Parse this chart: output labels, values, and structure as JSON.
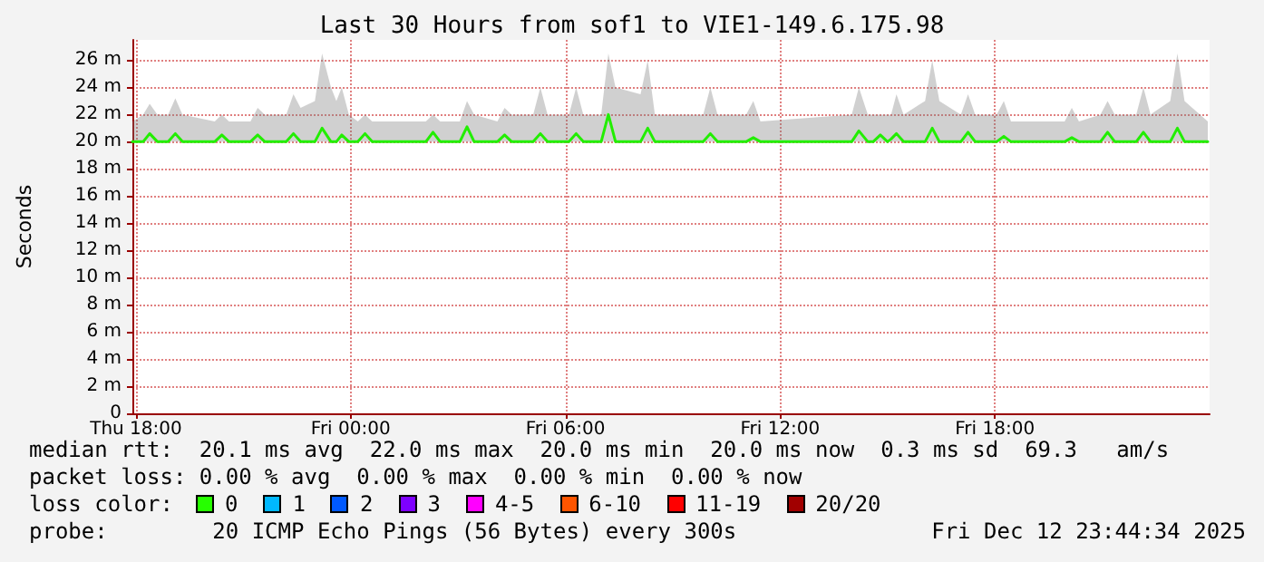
{
  "chart_data": {
    "type": "line",
    "title": "Last 30 Hours from sof1 to VIE1-149.6.175.98",
    "ylabel": "Seconds",
    "xlim": [
      "2025-12-11T17:54",
      "2025-12-13T00:00"
    ],
    "xticks": [
      {
        "value": "2025-12-11T18:00",
        "label": "Thu 18:00"
      },
      {
        "value": "2025-12-12T00:00",
        "label": "Fri 00:00"
      },
      {
        "value": "2025-12-12T06:00",
        "label": "Fri 06:00"
      },
      {
        "value": "2025-12-12T12:00",
        "label": "Fri 12:00"
      },
      {
        "value": "2025-12-12T18:00",
        "label": "Fri 18:00"
      }
    ],
    "ylim": [
      0,
      27.5
    ],
    "yticks": [
      {
        "value": 0,
        "label": "0"
      },
      {
        "value": 2,
        "label": "2 m"
      },
      {
        "value": 4,
        "label": "4 m"
      },
      {
        "value": 6,
        "label": "6 m"
      },
      {
        "value": 8,
        "label": "8 m"
      },
      {
        "value": 10,
        "label": "10 m"
      },
      {
        "value": 12,
        "label": "12 m"
      },
      {
        "value": 14,
        "label": "14 m"
      },
      {
        "value": 16,
        "label": "16 m"
      },
      {
        "value": 18,
        "label": "18 m"
      },
      {
        "value": 20,
        "label": "20 m"
      },
      {
        "value": 22,
        "label": "22 m"
      },
      {
        "value": 24,
        "label": "24 m"
      },
      {
        "value": 26,
        "label": "26 m"
      }
    ],
    "grid": true,
    "marker": "none",
    "line_style": "solid",
    "series": [
      {
        "color": "#22ee00",
        "x": [
          "2025-12-11T17:54",
          "2025-12-11T18:12",
          "2025-12-11T18:23",
          "2025-12-11T18:36",
          "2025-12-11T18:54",
          "2025-12-11T19:06",
          "2025-12-11T19:18",
          "2025-12-11T20:12",
          "2025-12-11T20:24",
          "2025-12-11T20:36",
          "2025-12-11T21:12",
          "2025-12-11T21:24",
          "2025-12-11T21:36",
          "2025-12-11T22:12",
          "2025-12-11T22:24",
          "2025-12-11T22:36",
          "2025-12-11T23:00",
          "2025-12-11T23:12",
          "2025-12-11T23:27",
          "2025-12-11T23:36",
          "2025-12-11T23:45",
          "2025-12-11T23:57",
          "2025-12-12T00:12",
          "2025-12-12T00:24",
          "2025-12-12T00:36",
          "2025-12-12T02:06",
          "2025-12-12T02:18",
          "2025-12-12T02:30",
          "2025-12-12T03:03",
          "2025-12-12T03:15",
          "2025-12-12T03:27",
          "2025-12-12T04:06",
          "2025-12-12T04:18",
          "2025-12-12T04:30",
          "2025-12-12T05:06",
          "2025-12-12T05:18",
          "2025-12-12T05:30",
          "2025-12-12T06:06",
          "2025-12-12T06:18",
          "2025-12-12T06:30",
          "2025-12-12T07:00",
          "2025-12-12T07:12",
          "2025-12-12T07:24",
          "2025-12-12T08:06",
          "2025-12-12T08:18",
          "2025-12-12T08:30",
          "2025-12-12T09:51",
          "2025-12-12T10:03",
          "2025-12-12T10:15",
          "2025-12-12T11:03",
          "2025-12-12T11:15",
          "2025-12-12T11:27",
          "2025-12-12T14:00",
          "2025-12-12T14:12",
          "2025-12-12T14:27",
          "2025-12-12T14:36",
          "2025-12-12T14:48",
          "2025-12-12T15:00",
          "2025-12-12T15:06",
          "2025-12-12T15:15",
          "2025-12-12T15:27",
          "2025-12-12T16:03",
          "2025-12-12T16:15",
          "2025-12-12T16:27",
          "2025-12-12T17:03",
          "2025-12-12T17:15",
          "2025-12-12T17:27",
          "2025-12-12T18:03",
          "2025-12-12T18:15",
          "2025-12-12T18:27",
          "2025-12-12T19:57",
          "2025-12-12T20:09",
          "2025-12-12T20:21",
          "2025-12-12T20:57",
          "2025-12-12T21:09",
          "2025-12-12T21:21",
          "2025-12-12T21:57",
          "2025-12-12T22:09",
          "2025-12-12T22:21",
          "2025-12-12T22:54",
          "2025-12-12T23:06",
          "2025-12-12T23:18",
          "2025-12-12T23:57"
        ],
        "values": [
          20,
          20,
          20.6,
          20,
          20,
          20.6,
          20,
          20,
          20.5,
          20,
          20,
          20.5,
          20,
          20,
          20.6,
          20,
          20,
          21,
          20,
          20,
          20.5,
          20,
          20,
          20.6,
          20,
          20,
          20.7,
          20,
          20,
          21.1,
          20,
          20,
          20.5,
          20,
          20,
          20.6,
          20,
          20,
          20.6,
          20,
          20,
          22,
          20,
          20,
          21,
          20,
          20,
          20.6,
          20,
          20,
          20.3,
          20,
          20,
          20.8,
          20,
          20,
          20.5,
          20,
          20.2,
          20.6,
          20,
          20,
          21,
          20,
          20,
          20.7,
          20,
          20,
          20.4,
          20,
          20,
          20.3,
          20,
          20,
          20.7,
          20,
          20,
          20.7,
          20,
          20,
          21,
          20,
          20
        ],
        "lower": [
          20,
          20,
          20,
          20,
          20,
          20,
          20,
          20,
          20,
          20,
          20,
          20,
          20,
          20,
          20,
          20,
          20,
          20,
          20,
          20,
          20,
          20,
          20,
          20,
          20,
          20,
          20,
          20,
          20,
          20,
          20,
          20,
          20,
          20,
          20,
          20,
          20,
          20,
          20,
          20,
          20,
          20,
          20,
          20,
          20,
          20,
          20,
          20,
          20,
          20,
          20,
          20,
          20,
          20,
          20,
          20,
          20,
          20,
          20,
          20,
          20,
          20,
          20,
          20,
          20,
          20,
          20,
          20,
          20,
          20,
          20,
          20,
          20,
          20,
          20,
          20,
          20,
          20,
          20,
          20,
          20,
          20,
          20
        ],
        "upper": [
          21.5,
          22,
          22.8,
          22,
          22,
          23.2,
          22,
          21.5,
          22,
          21.5,
          21.5,
          22.5,
          22,
          22,
          23.5,
          22.5,
          23,
          26.5,
          24,
          23,
          24,
          22,
          21.5,
          22,
          21.5,
          21.5,
          22,
          21.5,
          21.5,
          23,
          22,
          21.5,
          22.5,
          22,
          22,
          24,
          22,
          22,
          24,
          22,
          22,
          26.5,
          24,
          23.5,
          26,
          22,
          22,
          24,
          22,
          22,
          23,
          21.5,
          22,
          24,
          22,
          22,
          22,
          22,
          22,
          23.5,
          22,
          23,
          26,
          23,
          22,
          23.5,
          22,
          22,
          23,
          21.5,
          21.5,
          22.5,
          21.5,
          22,
          23,
          22,
          22,
          24,
          22,
          23,
          26.5,
          23,
          21.5
        ]
      }
    ],
    "annotations": [
      "median rtt:  20.1 ms avg  22.0 ms max  20.0 ms min  20.0 ms now  0.3 ms sd  69.3   am/s",
      "packet loss: 0.00 % avg  0.00 % max  0.00 % min  0.00 % now",
      "loss color:",
      "0",
      "1",
      "2",
      "3",
      "4-5",
      "6-10",
      "11-19",
      "20/20",
      "probe:        20 ICMP Echo Pings (56 Bytes) every 300s",
      "Fri Dec 12 23:44:34 2025"
    ]
  }
}
